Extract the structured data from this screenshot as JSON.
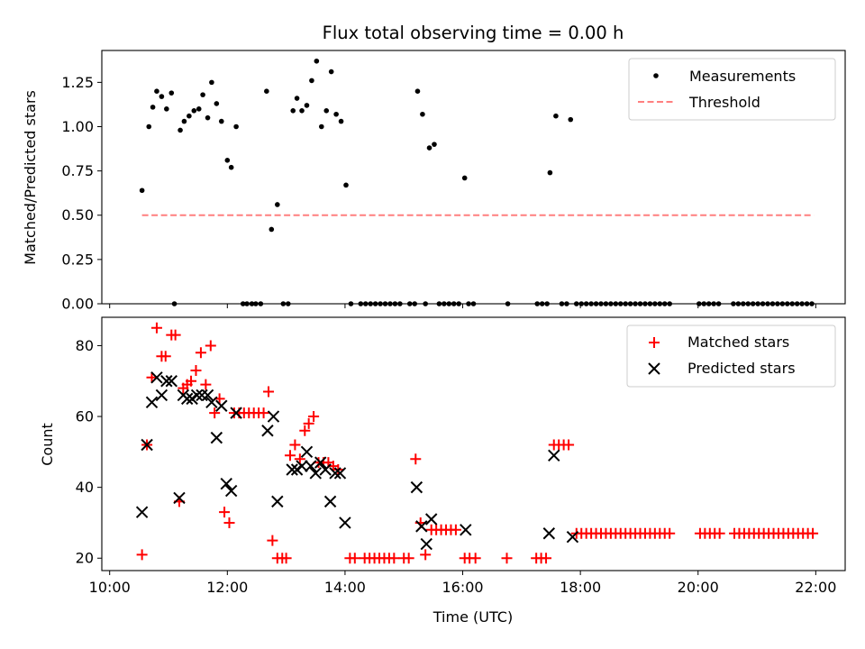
{
  "chart_data": [
    {
      "type": "scatter",
      "title": "Flux total observing time = 0.00 h",
      "xlabel": "",
      "ylabel": "Matched/Predicted stars",
      "ylim": [
        0,
        1.43
      ],
      "x_ticks": [],
      "y_ticks": [
        {
          "v": 0.0,
          "label": "0.00"
        },
        {
          "v": 0.25,
          "label": "0.25"
        },
        {
          "v": 0.5,
          "label": "0.50"
        },
        {
          "v": 0.75,
          "label": "0.75"
        },
        {
          "v": 1.0,
          "label": "1.00"
        },
        {
          "v": 1.25,
          "label": "1.25"
        }
      ],
      "legend": [
        "Measurements",
        "Threshold"
      ],
      "legend_position": "upper right",
      "colors": {
        "measurements": "#000000",
        "threshold": "#ff7f7f"
      },
      "threshold": {
        "y": 0.5,
        "x_start": "10:33",
        "x_end": "21:58"
      },
      "measurements": [
        [
          "10:33",
          0.64
        ],
        [
          "10:40",
          1.0
        ],
        [
          "10:44",
          1.11
        ],
        [
          "10:48",
          1.2
        ],
        [
          "10:53",
          1.17
        ],
        [
          "10:58",
          1.1
        ],
        [
          "11:03",
          1.19
        ],
        [
          "11:06",
          0.0
        ],
        [
          "11:12",
          0.98
        ],
        [
          "11:16",
          1.03
        ],
        [
          "11:21",
          1.06
        ],
        [
          "11:26",
          1.09
        ],
        [
          "11:31",
          1.1
        ],
        [
          "11:35",
          1.18
        ],
        [
          "11:40",
          1.05
        ],
        [
          "11:44",
          1.25
        ],
        [
          "11:49",
          1.13
        ],
        [
          "11:54",
          1.03
        ],
        [
          "12:00",
          0.81
        ],
        [
          "12:04",
          0.77
        ],
        [
          "12:09",
          1.0
        ],
        [
          "12:16",
          0.0
        ],
        [
          "12:20",
          0.0
        ],
        [
          "12:25",
          0.0
        ],
        [
          "12:29",
          0.0
        ],
        [
          "12:34",
          0.0
        ],
        [
          "12:40",
          1.2
        ],
        [
          "12:45",
          0.42
        ],
        [
          "12:51",
          0.56
        ],
        [
          "12:57",
          0.0
        ],
        [
          "13:02",
          0.0
        ],
        [
          "13:07",
          1.09
        ],
        [
          "13:11",
          1.16
        ],
        [
          "13:16",
          1.09
        ],
        [
          "13:21",
          1.12
        ],
        [
          "13:26",
          1.26
        ],
        [
          "13:31",
          1.37
        ],
        [
          "13:36",
          1.0
        ],
        [
          "13:41",
          1.09
        ],
        [
          "13:46",
          1.31
        ],
        [
          "13:51",
          1.07
        ],
        [
          "13:56",
          1.03
        ],
        [
          "14:01",
          0.67
        ],
        [
          "14:06",
          0.0
        ],
        [
          "14:16",
          0.0
        ],
        [
          "14:21",
          0.0
        ],
        [
          "14:26",
          0.0
        ],
        [
          "14:31",
          0.0
        ],
        [
          "14:36",
          0.0
        ],
        [
          "14:41",
          0.0
        ],
        [
          "14:46",
          0.0
        ],
        [
          "14:51",
          0.0
        ],
        [
          "14:56",
          0.0
        ],
        [
          "15:06",
          0.0
        ],
        [
          "15:11",
          0.0
        ],
        [
          "15:14",
          1.2
        ],
        [
          "15:19",
          1.07
        ],
        [
          "15:22",
          0.0
        ],
        [
          "15:26",
          0.88
        ],
        [
          "15:31",
          0.9
        ],
        [
          "15:36",
          0.0
        ],
        [
          "15:41",
          0.0
        ],
        [
          "15:46",
          0.0
        ],
        [
          "15:51",
          0.0
        ],
        [
          "15:56",
          0.0
        ],
        [
          "16:02",
          0.71
        ],
        [
          "16:06",
          0.0
        ],
        [
          "16:11",
          0.0
        ],
        [
          "16:46",
          0.0
        ],
        [
          "17:16",
          0.0
        ],
        [
          "17:21",
          0.0
        ],
        [
          "17:26",
          0.0
        ],
        [
          "17:29",
          0.74
        ],
        [
          "17:35",
          1.06
        ],
        [
          "17:41",
          0.0
        ],
        [
          "17:46",
          0.0
        ],
        [
          "17:50",
          1.04
        ],
        [
          "17:56",
          0.0
        ],
        [
          "18:01",
          0.0
        ],
        [
          "18:06",
          0.0
        ],
        [
          "18:11",
          0.0
        ],
        [
          "18:16",
          0.0
        ],
        [
          "18:21",
          0.0
        ],
        [
          "18:26",
          0.0
        ],
        [
          "18:31",
          0.0
        ],
        [
          "18:36",
          0.0
        ],
        [
          "18:41",
          0.0
        ],
        [
          "18:46",
          0.0
        ],
        [
          "18:51",
          0.0
        ],
        [
          "18:56",
          0.0
        ],
        [
          "19:01",
          0.0
        ],
        [
          "19:06",
          0.0
        ],
        [
          "19:11",
          0.0
        ],
        [
          "19:16",
          0.0
        ],
        [
          "19:21",
          0.0
        ],
        [
          "19:26",
          0.0
        ],
        [
          "19:31",
          0.0
        ],
        [
          "20:01",
          0.0
        ],
        [
          "20:06",
          0.0
        ],
        [
          "20:11",
          0.0
        ],
        [
          "20:16",
          0.0
        ],
        [
          "20:21",
          0.0
        ],
        [
          "20:36",
          0.0
        ],
        [
          "20:41",
          0.0
        ],
        [
          "20:46",
          0.0
        ],
        [
          "20:51",
          0.0
        ],
        [
          "20:56",
          0.0
        ],
        [
          "21:01",
          0.0
        ],
        [
          "21:06",
          0.0
        ],
        [
          "21:11",
          0.0
        ],
        [
          "21:16",
          0.0
        ],
        [
          "21:21",
          0.0
        ],
        [
          "21:26",
          0.0
        ],
        [
          "21:31",
          0.0
        ],
        [
          "21:36",
          0.0
        ],
        [
          "21:41",
          0.0
        ],
        [
          "21:46",
          0.0
        ],
        [
          "21:51",
          0.0
        ],
        [
          "21:56",
          0.0
        ]
      ]
    },
    {
      "type": "scatter",
      "title": "",
      "xlabel": "Time (UTC)",
      "ylabel": "Count",
      "ylim": [
        16.5,
        88
      ],
      "x_ticks": [
        {
          "v": "10:00",
          "label": "10:00"
        },
        {
          "v": "12:00",
          "label": "12:00"
        },
        {
          "v": "14:00",
          "label": "14:00"
        },
        {
          "v": "16:00",
          "label": "16:00"
        },
        {
          "v": "18:00",
          "label": "18:00"
        },
        {
          "v": "20:00",
          "label": "20:00"
        },
        {
          "v": "22:00",
          "label": "22:00"
        }
      ],
      "y_ticks": [
        {
          "v": 20,
          "label": "20"
        },
        {
          "v": 40,
          "label": "40"
        },
        {
          "v": 60,
          "label": "60"
        },
        {
          "v": 80,
          "label": "80"
        }
      ],
      "legend": [
        "Matched stars",
        "Predicted stars"
      ],
      "legend_position": "upper right",
      "colors": {
        "matched": "#ff0000",
        "predicted": "#000000"
      },
      "series": [
        {
          "name": "Matched stars",
          "marker": "plus",
          "points": [
            [
              "10:33",
              21
            ],
            [
              "10:38",
              52
            ],
            [
              "10:43",
              71
            ],
            [
              "10:48",
              85
            ],
            [
              "10:53",
              77
            ],
            [
              "10:57",
              77
            ],
            [
              "11:03",
              83
            ],
            [
              "11:07",
              83
            ],
            [
              "11:11",
              36
            ],
            [
              "11:15",
              68
            ],
            [
              "11:19",
              69
            ],
            [
              "11:23",
              70
            ],
            [
              "11:28",
              73
            ],
            [
              "11:33",
              78
            ],
            [
              "11:38",
              69
            ],
            [
              "11:43",
              80
            ],
            [
              "11:47",
              61
            ],
            [
              "11:52",
              65
            ],
            [
              "11:57",
              33
            ],
            [
              "12:02",
              30
            ],
            [
              "12:07",
              61
            ],
            [
              "12:12",
              61
            ],
            [
              "12:17",
              61
            ],
            [
              "12:22",
              61
            ],
            [
              "12:27",
              61
            ],
            [
              "12:32",
              61
            ],
            [
              "12:37",
              61
            ],
            [
              "12:42",
              67
            ],
            [
              "12:46",
              25
            ],
            [
              "12:51",
              20
            ],
            [
              "12:56",
              20
            ],
            [
              "13:00",
              20
            ],
            [
              "13:04",
              49
            ],
            [
              "13:09",
              52
            ],
            [
              "13:14",
              48
            ],
            [
              "13:19",
              56
            ],
            [
              "13:23",
              58
            ],
            [
              "13:28",
              60
            ],
            [
              "13:33",
              47
            ],
            [
              "13:38",
              47
            ],
            [
              "13:43",
              47
            ],
            [
              "13:48",
              46
            ],
            [
              "13:53",
              45
            ],
            [
              "14:05",
              20
            ],
            [
              "14:10",
              20
            ],
            [
              "14:20",
              20
            ],
            [
              "14:25",
              20
            ],
            [
              "14:30",
              20
            ],
            [
              "14:35",
              20
            ],
            [
              "14:40",
              20
            ],
            [
              "14:45",
              20
            ],
            [
              "14:50",
              20
            ],
            [
              "15:00",
              20
            ],
            [
              "15:05",
              20
            ],
            [
              "15:12",
              48
            ],
            [
              "15:17",
              30
            ],
            [
              "15:22",
              21
            ],
            [
              "15:28",
              28
            ],
            [
              "15:33",
              28
            ],
            [
              "15:38",
              28
            ],
            [
              "15:43",
              28
            ],
            [
              "15:48",
              28
            ],
            [
              "15:53",
              28
            ],
            [
              "16:02",
              20
            ],
            [
              "16:07",
              20
            ],
            [
              "16:13",
              20
            ],
            [
              "16:45",
              20
            ],
            [
              "17:15",
              20
            ],
            [
              "17:20",
              20
            ],
            [
              "17:25",
              20
            ],
            [
              "17:33",
              52
            ],
            [
              "17:38",
              52
            ],
            [
              "17:43",
              52
            ],
            [
              "17:48",
              52
            ],
            [
              "17:56",
              27
            ],
            [
              "18:01",
              27
            ],
            [
              "18:06",
              27
            ],
            [
              "18:11",
              27
            ],
            [
              "18:16",
              27
            ],
            [
              "18:21",
              27
            ],
            [
              "18:26",
              27
            ],
            [
              "18:31",
              27
            ],
            [
              "18:36",
              27
            ],
            [
              "18:41",
              27
            ],
            [
              "18:46",
              27
            ],
            [
              "18:51",
              27
            ],
            [
              "18:56",
              27
            ],
            [
              "19:01",
              27
            ],
            [
              "19:06",
              27
            ],
            [
              "19:11",
              27
            ],
            [
              "19:16",
              27
            ],
            [
              "19:21",
              27
            ],
            [
              "19:26",
              27
            ],
            [
              "19:31",
              27
            ],
            [
              "20:02",
              27
            ],
            [
              "20:07",
              27
            ],
            [
              "20:12",
              27
            ],
            [
              "20:17",
              27
            ],
            [
              "20:22",
              27
            ],
            [
              "20:37",
              27
            ],
            [
              "20:42",
              27
            ],
            [
              "20:47",
              27
            ],
            [
              "20:52",
              27
            ],
            [
              "20:57",
              27
            ],
            [
              "21:02",
              27
            ],
            [
              "21:07",
              27
            ],
            [
              "21:12",
              27
            ],
            [
              "21:17",
              27
            ],
            [
              "21:22",
              27
            ],
            [
              "21:27",
              27
            ],
            [
              "21:32",
              27
            ],
            [
              "21:37",
              27
            ],
            [
              "21:42",
              27
            ],
            [
              "21:47",
              27
            ],
            [
              "21:52",
              27
            ],
            [
              "21:57",
              27
            ]
          ]
        },
        {
          "name": "Predicted stars",
          "marker": "x",
          "points": [
            [
              "10:33",
              33
            ],
            [
              "10:38",
              52
            ],
            [
              "10:43",
              64
            ],
            [
              "10:48",
              71
            ],
            [
              "10:53",
              66
            ],
            [
              "10:58",
              70
            ],
            [
              "11:03",
              70
            ],
            [
              "11:11",
              37
            ],
            [
              "11:15",
              66
            ],
            [
              "11:19",
              65
            ],
            [
              "11:24",
              65
            ],
            [
              "11:29",
              66
            ],
            [
              "11:34",
              66
            ],
            [
              "11:40",
              66
            ],
            [
              "11:44",
              64
            ],
            [
              "11:49",
              54
            ],
            [
              "11:54",
              63
            ],
            [
              "11:59",
              41
            ],
            [
              "12:04",
              39
            ],
            [
              "12:09",
              61
            ],
            [
              "12:41",
              56
            ],
            [
              "12:47",
              60
            ],
            [
              "12:51",
              36
            ],
            [
              "13:06",
              45
            ],
            [
              "13:11",
              45
            ],
            [
              "13:16",
              46
            ],
            [
              "13:21",
              50
            ],
            [
              "13:25",
              46
            ],
            [
              "13:30",
              44
            ],
            [
              "13:35",
              47
            ],
            [
              "13:40",
              45
            ],
            [
              "13:45",
              36
            ],
            [
              "13:50",
              44
            ],
            [
              "13:55",
              44
            ],
            [
              "14:00",
              30
            ],
            [
              "15:13",
              40
            ],
            [
              "15:18",
              29
            ],
            [
              "15:23",
              24
            ],
            [
              "15:28",
              31
            ],
            [
              "16:03",
              28
            ],
            [
              "17:28",
              27
            ],
            [
              "17:33",
              49
            ],
            [
              "17:52",
              26
            ]
          ]
        }
      ]
    }
  ]
}
